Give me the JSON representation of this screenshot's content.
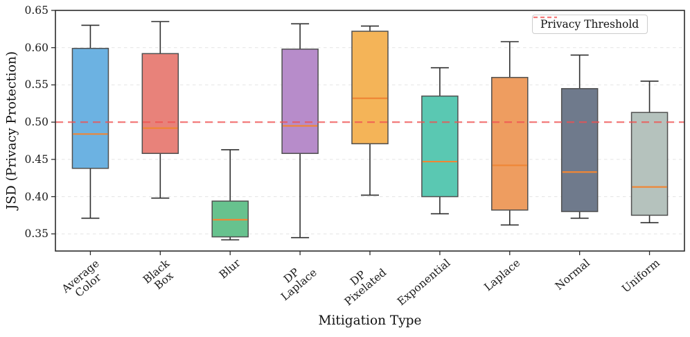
{
  "chart_data": {
    "type": "box",
    "title": "",
    "xlabel": "Mitigation Type",
    "ylabel": "JSD (Privacy Protection)",
    "ylim": [
      0.327,
      0.65
    ],
    "yticks": [
      0.35,
      0.4,
      0.45,
      0.5,
      0.55,
      0.6,
      0.65
    ],
    "ytick_labels": [
      "0.35",
      "0.40",
      "0.45",
      "0.50",
      "0.55",
      "0.60",
      "0.65"
    ],
    "grid": true,
    "legend_position": "upper right",
    "categories": [
      "Average Color",
      "Black Box",
      "Blur",
      "DP Laplace",
      "DP Pixelated",
      "Exponential",
      "Laplace",
      "Normal",
      "Uniform"
    ],
    "boxes": [
      {
        "label": "Average Color",
        "label_lines": [
          "Average",
          "Color"
        ],
        "color": "#6cb2e2",
        "whisker_low": 0.371,
        "q1": 0.438,
        "median": 0.484,
        "q3": 0.599,
        "whisker_high": 0.63
      },
      {
        "label": "Black Box",
        "label_lines": [
          "Black",
          "Box"
        ],
        "color": "#e8827a",
        "whisker_low": 0.398,
        "q1": 0.458,
        "median": 0.492,
        "q3": 0.592,
        "whisker_high": 0.635
      },
      {
        "label": "Blur",
        "label_lines": [
          "Blur"
        ],
        "color": "#67c28e",
        "whisker_low": 0.342,
        "q1": 0.346,
        "median": 0.369,
        "q3": 0.394,
        "whisker_high": 0.463
      },
      {
        "label": "DP Laplace",
        "label_lines": [
          "DP",
          "Laplace"
        ],
        "color": "#b78cca",
        "whisker_low": 0.345,
        "q1": 0.458,
        "median": 0.495,
        "q3": 0.598,
        "whisker_high": 0.632
      },
      {
        "label": "DP Pixelated",
        "label_lines": [
          "DP",
          "Pixelated"
        ],
        "color": "#f4b458",
        "whisker_low": 0.402,
        "q1": 0.471,
        "median": 0.532,
        "q3": 0.622,
        "whisker_high": 0.629
      },
      {
        "label": "Exponential",
        "label_lines": [
          "Exponential"
        ],
        "color": "#5ac8b2",
        "whisker_low": 0.377,
        "q1": 0.4,
        "median": 0.447,
        "q3": 0.535,
        "whisker_high": 0.573
      },
      {
        "label": "Laplace",
        "label_lines": [
          "Laplace"
        ],
        "color": "#ee9d60",
        "whisker_low": 0.362,
        "q1": 0.382,
        "median": 0.442,
        "q3": 0.56,
        "whisker_high": 0.608
      },
      {
        "label": "Normal",
        "label_lines": [
          "Normal"
        ],
        "color": "#6f7a8c",
        "whisker_low": 0.371,
        "q1": 0.38,
        "median": 0.433,
        "q3": 0.545,
        "whisker_high": 0.59
      },
      {
        "label": "Uniform",
        "label_lines": [
          "Uniform"
        ],
        "color": "#b5c2bd",
        "whisker_low": 0.365,
        "q1": 0.375,
        "median": 0.413,
        "q3": 0.513,
        "whisker_high": 0.555
      }
    ],
    "threshold": {
      "value": 0.5,
      "label": "Privacy Threshold",
      "color": "#f05050",
      "style": "dashed"
    },
    "legend": {
      "entries": [
        {
          "label": "Privacy Threshold",
          "color": "#f05050",
          "line_style": "dashed"
        }
      ]
    },
    "style_colors": {
      "median_line": "#ef8636",
      "box_edge": "#4f4f4f",
      "whisker": "#2e2e2e",
      "gridline": "#e7e7e7",
      "spine": "#2b2b2b"
    }
  }
}
